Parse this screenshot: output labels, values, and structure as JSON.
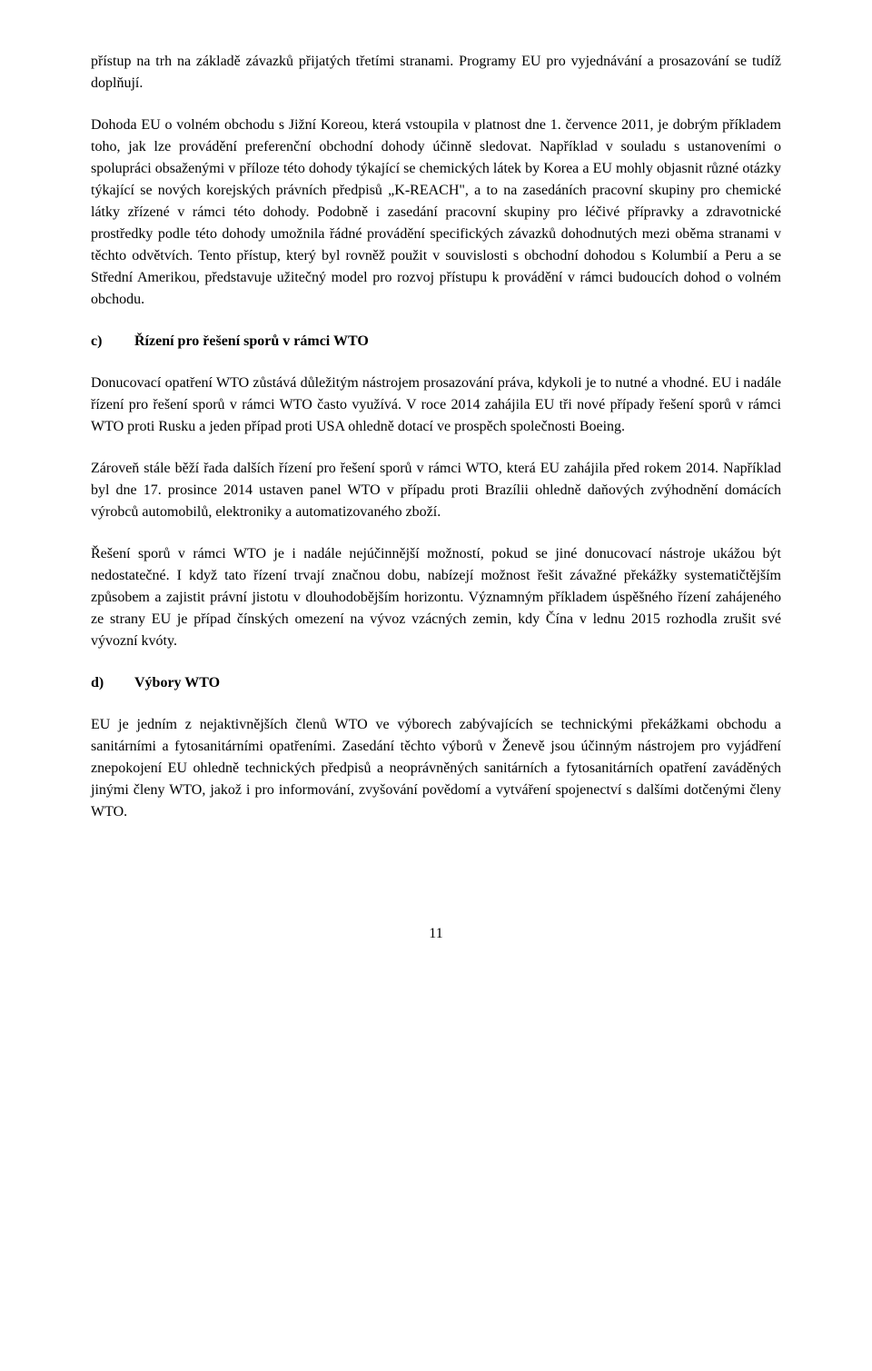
{
  "paragraphs": {
    "p1": "přístup na trh na základě závazků přijatých třetími stranami. Programy EU pro vyjednávání a prosazování se tudíž doplňují.",
    "p2": "Dohoda EU o volném obchodu s Jižní Koreou, která vstoupila v platnost dne 1. července 2011, je dobrým příkladem toho, jak lze provádění preferenční obchodní dohody účinně sledovat. Například v souladu s ustanoveními o spolupráci obsaženými v příloze této dohody týkající se chemických látek by Korea a EU mohly objasnit různé otázky týkající se nových korejských právních předpisů „K-REACH\", a to na zasedáních pracovní skupiny pro chemické látky zřízené v rámci této dohody. Podobně i zasedání pracovní skupiny pro léčivé přípravky a zdravotnické prostředky podle této dohody umožnila řádné provádění specifických závazků dohodnutých mezi oběma stranami v těchto odvětvích. Tento přístup, který byl rovněž použit v souvislosti s obchodní dohodou s Kolumbií a Peru a se Střední Amerikou, představuje užitečný model pro rozvoj přístupu k provádění v rámci budoucích dohod o volném obchodu.",
    "p3": "Donucovací opatření WTO zůstává důležitým nástrojem prosazování práva, kdykoli je to nutné a vhodné. EU i nadále řízení pro řešení sporů v rámci WTO často využívá. V roce 2014 zahájila EU tři nové případy řešení sporů v rámci WTO proti Rusku a jeden případ proti USA ohledně dotací ve prospěch společnosti Boeing.",
    "p4": "Zároveň stále běží řada dalších řízení pro řešení sporů v rámci WTO, která EU zahájila před rokem 2014. Například byl dne 17. prosince 2014 ustaven panel WTO v případu proti Brazílii ohledně daňových zvýhodnění domácích výrobců automobilů, elektroniky a automatizovaného zboží.",
    "p5": "Řešení sporů v rámci WTO je i nadále nejúčinnější možností, pokud se jiné donucovací nástroje ukážou být nedostatečné. I když tato řízení trvají značnou dobu, nabízejí možnost řešit závažné překážky systematičtějším způsobem a zajistit právní jistotu v dlouhodobějším horizontu. Významným příkladem úspěšného řízení zahájeného ze strany EU je případ čínských omezení na vývoz vzácných zemin, kdy Čína v lednu 2015 rozhodla zrušit své vývozní kvóty.",
    "p6": "EU je jedním z nejaktivnějších členů WTO ve výborech zabývajících se technickými překážkami obchodu a sanitárními a fytosanitárními opatřeními. Zasedání těchto výborů v Ženevě jsou účinným nástrojem pro vyjádření znepokojení EU ohledně technických předpisů a neoprávněných sanitárních a fytosanitárních opatření zaváděných jinými členy WTO, jakož i pro informování, zvyšování povědomí a vytváření spojenectví s dalšími dotčenými členy WTO."
  },
  "headings": {
    "c": {
      "letter": "c)",
      "text": "Řízení pro řešení sporů v rámci WTO"
    },
    "d": {
      "letter": "d)",
      "text": "Výbory WTO"
    }
  },
  "pageNumber": "11"
}
